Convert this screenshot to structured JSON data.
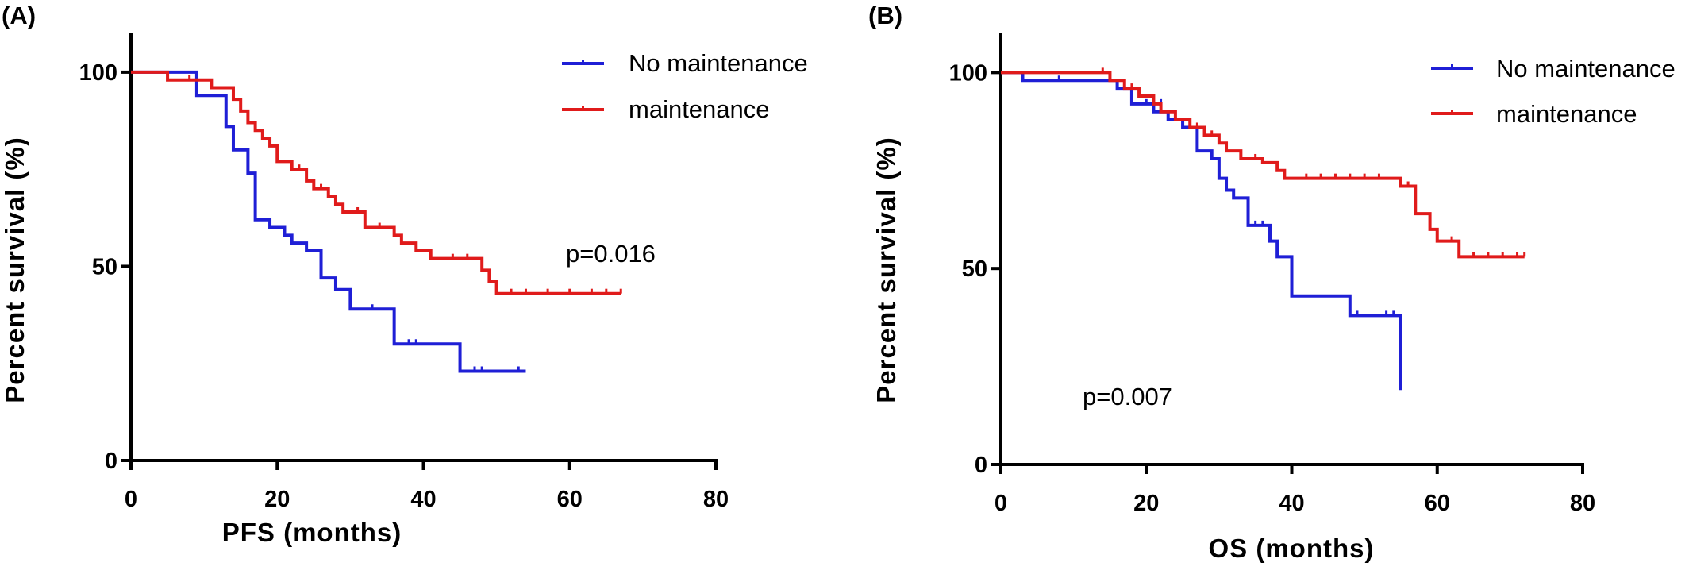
{
  "colors": {
    "no_maintenance": "#1f1fd6",
    "maintenance": "#e01b1b",
    "axis": "#000000"
  },
  "chart_data": [
    {
      "type": "line",
      "subtype": "kaplan-meier-step",
      "panel_label": "(A)",
      "xlabel": "PFS (months)",
      "ylabel": "Percent survival (%)",
      "xlim": [
        0,
        80
      ],
      "ylim": [
        0,
        110
      ],
      "xticks": [
        0,
        20,
        40,
        60,
        80
      ],
      "yticks": [
        0,
        50,
        100
      ],
      "grid": false,
      "legend_position": "top-right",
      "annotation": "p=0.016",
      "series": [
        {
          "name": "No maintenance",
          "color": "#1f1fd6",
          "steps": [
            [
              0,
              100
            ],
            [
              9,
              94
            ],
            [
              13,
              86
            ],
            [
              14,
              80
            ],
            [
              16,
              74
            ],
            [
              17,
              62
            ],
            [
              19,
              60
            ],
            [
              21,
              58
            ],
            [
              22,
              56
            ],
            [
              24,
              54
            ],
            [
              26,
              47
            ],
            [
              28,
              44
            ],
            [
              30,
              39
            ],
            [
              36,
              30
            ],
            [
              45,
              23
            ],
            [
              54,
              23
            ]
          ],
          "censored": [
            [
              47,
              23
            ],
            [
              48,
              23
            ],
            [
              53,
              23
            ],
            [
              33,
              39
            ],
            [
              38,
              30
            ],
            [
              39,
              30
            ]
          ]
        },
        {
          "name": "maintenance",
          "color": "#e01b1b",
          "steps": [
            [
              0,
              100
            ],
            [
              5,
              98
            ],
            [
              11,
              96
            ],
            [
              14,
              93
            ],
            [
              15,
              90
            ],
            [
              16,
              87
            ],
            [
              17,
              85
            ],
            [
              18,
              83
            ],
            [
              19,
              81
            ],
            [
              20,
              77
            ],
            [
              22,
              75
            ],
            [
              24,
              72
            ],
            [
              25,
              70
            ],
            [
              27,
              68
            ],
            [
              28,
              66
            ],
            [
              29,
              64
            ],
            [
              32,
              60
            ],
            [
              36,
              58
            ],
            [
              37,
              56
            ],
            [
              39,
              54
            ],
            [
              41,
              52
            ],
            [
              48,
              49
            ],
            [
              49,
              46
            ],
            [
              50,
              43
            ],
            [
              67,
              43
            ]
          ],
          "censored": [
            [
              8,
              98
            ],
            [
              23,
              75
            ],
            [
              26,
              70
            ],
            [
              31,
              64
            ],
            [
              34,
              60
            ],
            [
              44,
              52
            ],
            [
              46,
              52
            ],
            [
              52,
              43
            ],
            [
              54,
              43
            ],
            [
              57,
              43
            ],
            [
              60,
              43
            ],
            [
              63,
              43
            ],
            [
              65,
              43
            ],
            [
              67,
              43
            ]
          ]
        }
      ]
    },
    {
      "type": "line",
      "subtype": "kaplan-meier-step",
      "panel_label": "(B)",
      "xlabel": "OS (months)",
      "ylabel": "Percent survival (%)",
      "xlim": [
        0,
        80
      ],
      "ylim": [
        0,
        110
      ],
      "xticks": [
        0,
        20,
        40,
        60,
        80
      ],
      "yticks": [
        0,
        50,
        100
      ],
      "grid": false,
      "legend_position": "top-right",
      "annotation": "p=0.007",
      "series": [
        {
          "name": "No maintenance",
          "color": "#1f1fd6",
          "steps": [
            [
              0,
              100
            ],
            [
              3,
              98
            ],
            [
              16,
              96
            ],
            [
              18,
              92
            ],
            [
              21,
              90
            ],
            [
              23,
              88
            ],
            [
              25,
              86
            ],
            [
              27,
              80
            ],
            [
              29,
              78
            ],
            [
              30,
              73
            ],
            [
              31,
              70
            ],
            [
              32,
              68
            ],
            [
              34,
              61
            ],
            [
              37,
              57
            ],
            [
              38,
              53
            ],
            [
              40,
              43
            ],
            [
              48,
              38
            ],
            [
              55,
              38
            ],
            [
              55,
              19
            ]
          ],
          "censored": [
            [
              8,
              98
            ],
            [
              20,
              92
            ],
            [
              22,
              92
            ],
            [
              35,
              61
            ],
            [
              36,
              61
            ],
            [
              49,
              38
            ],
            [
              53,
              38
            ],
            [
              54,
              38
            ]
          ]
        },
        {
          "name": "maintenance",
          "color": "#e01b1b",
          "steps": [
            [
              0,
              100
            ],
            [
              15,
              98
            ],
            [
              17,
              96
            ],
            [
              19,
              94
            ],
            [
              21,
              92
            ],
            [
              22,
              90
            ],
            [
              24,
              88
            ],
            [
              26,
              86
            ],
            [
              28,
              84
            ],
            [
              30,
              82
            ],
            [
              31,
              80
            ],
            [
              33,
              78
            ],
            [
              36,
              77
            ],
            [
              38,
              75
            ],
            [
              39,
              73
            ],
            [
              54,
              73
            ],
            [
              55,
              71
            ],
            [
              57,
              64
            ],
            [
              59,
              60
            ],
            [
              60,
              57
            ],
            [
              63,
              53
            ],
            [
              72,
              53
            ]
          ],
          "censored": [
            [
              14,
              100
            ],
            [
              18,
              96
            ],
            [
              27,
              86
            ],
            [
              29,
              84
            ],
            [
              35,
              78
            ],
            [
              42,
              73
            ],
            [
              44,
              73
            ],
            [
              46,
              73
            ],
            [
              48,
              73
            ],
            [
              50,
              73
            ],
            [
              52,
              73
            ],
            [
              56,
              71
            ],
            [
              62,
              57
            ],
            [
              65,
              53
            ],
            [
              67,
              53
            ],
            [
              69,
              53
            ],
            [
              71,
              53
            ],
            [
              72,
              53
            ]
          ]
        }
      ]
    }
  ]
}
